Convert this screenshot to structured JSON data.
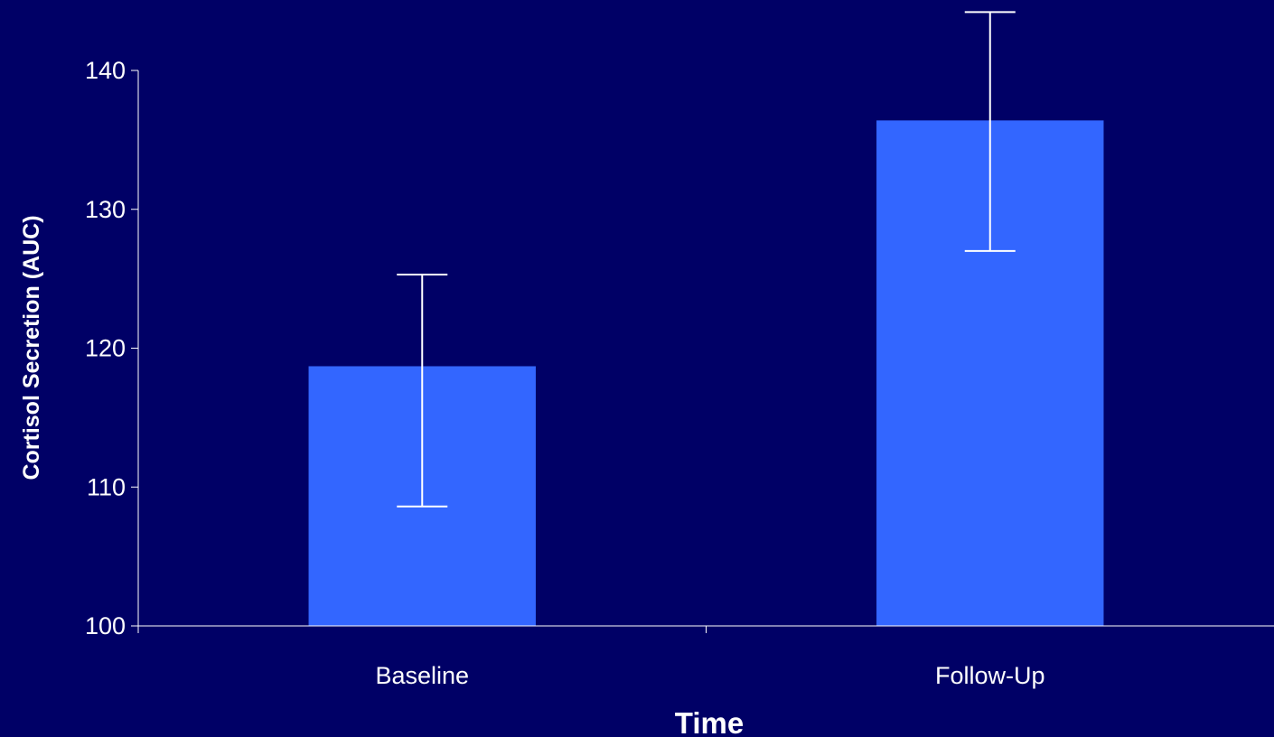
{
  "chart_data": {
    "type": "bar",
    "categories": [
      "Baseline",
      "Follow-Up"
    ],
    "values": [
      118.7,
      136.4
    ],
    "error_low": [
      108.6,
      127.0
    ],
    "error_high": [
      125.3,
      144.2
    ],
    "xlabel": "Time",
    "ylabel": "Cortisol Secretion (AUC)",
    "ylim": [
      100,
      140
    ],
    "yticks": [
      "100",
      "110",
      "120",
      "130",
      "140"
    ],
    "grid": false,
    "legend": "none"
  },
  "colors": {
    "background": "#000066",
    "bar": "#3366ff",
    "axis": "#ffffff",
    "text": "#ffffff"
  }
}
